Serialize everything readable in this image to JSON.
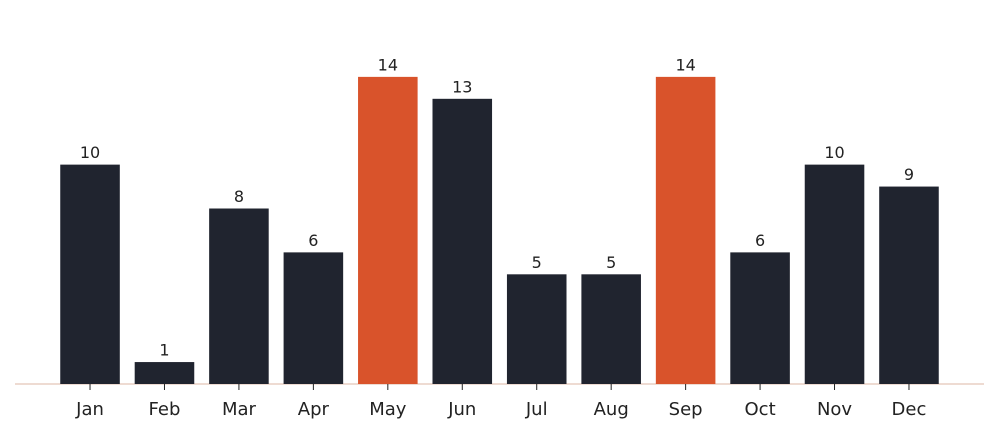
{
  "chart_data": {
    "type": "bar",
    "categories": [
      "Jan",
      "Feb",
      "Mar",
      "Apr",
      "May",
      "Jun",
      "Jul",
      "Aug",
      "Sep",
      "Oct",
      "Nov",
      "Dec"
    ],
    "values": [
      10,
      1,
      8,
      6,
      14,
      13,
      5,
      5,
      14,
      6,
      10,
      9
    ],
    "colors": [
      "#20242f",
      "#20242f",
      "#20242f",
      "#20242f",
      "#d9532b",
      "#20242f",
      "#20242f",
      "#20242f",
      "#d9532b",
      "#20242f",
      "#20242f",
      "#20242f"
    ],
    "ylim": [
      0,
      16
    ]
  }
}
